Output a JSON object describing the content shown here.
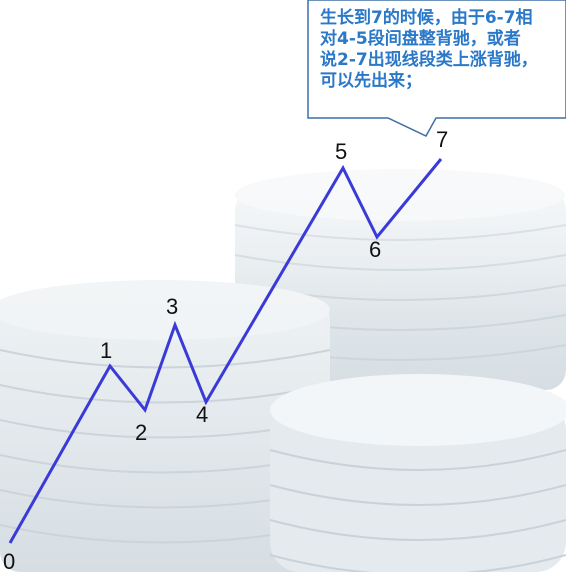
{
  "callout": {
    "lines": [
      "生长到7的时候，由于6-7相",
      "对4-5段间盘整背驰，或者",
      "说2-7出现线段类上涨背驰，",
      "可以先出来；"
    ]
  },
  "wave": {
    "line_color": "#3a3ad8",
    "points": [
      {
        "label": "0"
      },
      {
        "label": "1"
      },
      {
        "label": "2"
      },
      {
        "label": "3"
      },
      {
        "label": "4"
      },
      {
        "label": "5"
      },
      {
        "label": "6"
      },
      {
        "label": "7"
      }
    ]
  },
  "colors": {
    "callout_border": "#3d6fa8",
    "callout_fill": "#ffffff",
    "callout_text": "#2a78c8",
    "coin_fill": "#dfe6ea"
  }
}
